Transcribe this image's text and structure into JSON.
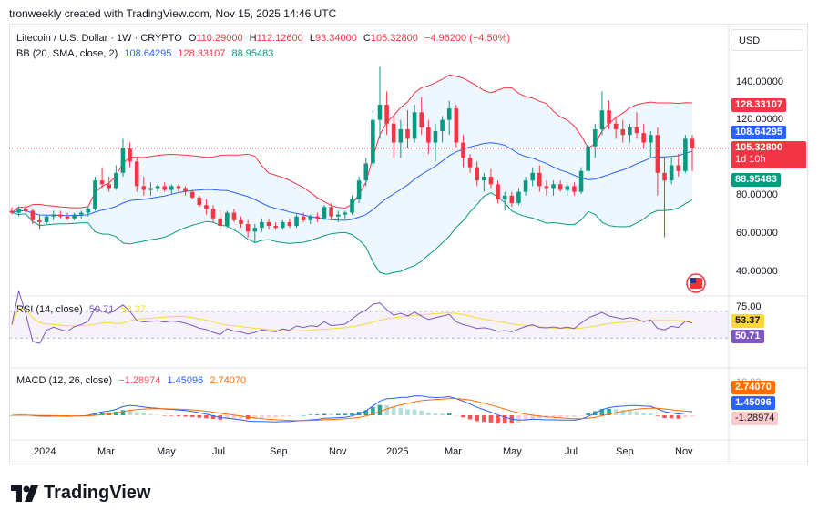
{
  "header": {
    "attribution": "tronweekly created with TradingView.com, Nov 15, 2025 14:46 UTC"
  },
  "legend": {
    "symbol": "Litecoin / U.S. Dollar · 1W · CRYPTO",
    "open_label": "O",
    "open": "110.29000",
    "high_label": "H",
    "high": "112.12600",
    "low_label": "L",
    "low": "93.34000",
    "close_label": "C",
    "close": "105.32800",
    "change": "−4.96200 (−4.50%)",
    "bb_label": "BB (20, SMA, close, 2)",
    "bb_basis": "108.64295",
    "bb_upper": "128.33107",
    "bb_lower": "88.95483",
    "rsi_label": "RSI (14, close)",
    "rsi_value": "50.71",
    "rsi_ma": "53.37",
    "macd_label": "MACD (12, 26, close)",
    "macd_hist": "−1.28974",
    "macd_line": "1.45096",
    "macd_signal": "2.74070"
  },
  "currency": "USD",
  "price_axis": {
    "ticks": [
      "140.00000",
      "120.00000",
      "100.00000",
      "80.00000",
      "60.00000",
      "40.00000"
    ],
    "badge_upper": "128.33107",
    "badge_basis": "108.64295",
    "badge_close": "105.32800",
    "badge_countdown": "1d 10h",
    "badge_lower": "88.95483"
  },
  "rsi_axis": {
    "tick": "75.00",
    "badge_ma": "53.37",
    "badge_rsi": "50.71"
  },
  "macd_axis": {
    "tick": "10.00",
    "badge_signal": "2.74070",
    "badge_macd": "1.45096",
    "badge_hist": "-1.28974"
  },
  "time_axis": [
    "2024",
    "Mar",
    "May",
    "Jul",
    "Sep",
    "Nov",
    "2025",
    "Mar",
    "May",
    "Jul",
    "Sep",
    "Nov"
  ],
  "footer": {
    "brand": "TradingView"
  },
  "colors": {
    "up": "#089981",
    "down": "#f23645",
    "basis": "#2962ff",
    "upper": "#f23645",
    "lower": "#089981",
    "band_fill": "#2196f3",
    "rsi": "#7e57c2",
    "rsi_ma": "#fdd835",
    "macd": "#2962ff",
    "signal": "#ff6d00"
  },
  "chart_data": {
    "type": "candlestick",
    "title": "Litecoin / U.S. Dollar · 1W · CRYPTO",
    "interval": "1W",
    "price_range": [
      30,
      160
    ],
    "candles_note": "weekly OHLC, estimated from the chart (Dec 2023 – Nov 2025)",
    "ohlc": [
      [
        72,
        74,
        70,
        71
      ],
      [
        71,
        74,
        69,
        73
      ],
      [
        73,
        75,
        71,
        72
      ],
      [
        72,
        73,
        65,
        67
      ],
      [
        67,
        70,
        62,
        66
      ],
      [
        66,
        70,
        65,
        69
      ],
      [
        69,
        72,
        67,
        70
      ],
      [
        70,
        72,
        68,
        69
      ],
      [
        69,
        71,
        67,
        68
      ],
      [
        68,
        71,
        67,
        70
      ],
      [
        70,
        72,
        68,
        71
      ],
      [
        71,
        74,
        69,
        73
      ],
      [
        73,
        90,
        72,
        88
      ],
      [
        88,
        95,
        84,
        86
      ],
      [
        86,
        90,
        82,
        84
      ],
      [
        84,
        96,
        83,
        92
      ],
      [
        92,
        110,
        90,
        105
      ],
      [
        105,
        108,
        95,
        98
      ],
      [
        98,
        100,
        82,
        85
      ],
      [
        85,
        90,
        80,
        83
      ],
      [
        83,
        87,
        80,
        84
      ],
      [
        84,
        86,
        82,
        85
      ],
      [
        85,
        87,
        82,
        83
      ],
      [
        83,
        86,
        81,
        85
      ],
      [
        85,
        86,
        82,
        84
      ],
      [
        84,
        85,
        80,
        82
      ],
      [
        82,
        83,
        78,
        79
      ],
      [
        79,
        80,
        74,
        75
      ],
      [
        75,
        78,
        70,
        73
      ],
      [
        73,
        75,
        66,
        68
      ],
      [
        68,
        72,
        62,
        64
      ],
      [
        64,
        72,
        63,
        71
      ],
      [
        71,
        73,
        66,
        67
      ],
      [
        67,
        69,
        63,
        65
      ],
      [
        65,
        67,
        58,
        61
      ],
      [
        61,
        65,
        55,
        63
      ],
      [
        63,
        68,
        61,
        66
      ],
      [
        66,
        68,
        62,
        64
      ],
      [
        64,
        66,
        62,
        63
      ],
      [
        63,
        67,
        62,
        66
      ],
      [
        66,
        68,
        63,
        64
      ],
      [
        64,
        70,
        63,
        69
      ],
      [
        69,
        71,
        66,
        67
      ],
      [
        67,
        70,
        65,
        69
      ],
      [
        69,
        71,
        66,
        68
      ],
      [
        68,
        75,
        67,
        74
      ],
      [
        74,
        76,
        67,
        69
      ],
      [
        69,
        72,
        66,
        70
      ],
      [
        70,
        72,
        68,
        71
      ],
      [
        71,
        80,
        70,
        78
      ],
      [
        78,
        90,
        76,
        88
      ],
      [
        88,
        100,
        85,
        97
      ],
      [
        97,
        125,
        95,
        120
      ],
      [
        120,
        148,
        110,
        128
      ],
      [
        128,
        135,
        112,
        118
      ],
      [
        118,
        122,
        100,
        108
      ],
      [
        108,
        120,
        100,
        115
      ],
      [
        115,
        125,
        105,
        110
      ],
      [
        110,
        128,
        108,
        124
      ],
      [
        124,
        132,
        112,
        116
      ],
      [
        116,
        120,
        102,
        108
      ],
      [
        108,
        118,
        98,
        114
      ],
      [
        114,
        122,
        108,
        120
      ],
      [
        120,
        130,
        112,
        126
      ],
      [
        126,
        128,
        105,
        108
      ],
      [
        108,
        112,
        95,
        100
      ],
      [
        100,
        102,
        92,
        95
      ],
      [
        95,
        98,
        85,
        88
      ],
      [
        88,
        92,
        82,
        90
      ],
      [
        90,
        94,
        84,
        86
      ],
      [
        86,
        88,
        76,
        78
      ],
      [
        78,
        82,
        72,
        80
      ],
      [
        80,
        82,
        74,
        76
      ],
      [
        76,
        84,
        75,
        82
      ],
      [
        82,
        90,
        80,
        88
      ],
      [
        88,
        95,
        85,
        92
      ],
      [
        92,
        96,
        82,
        85
      ],
      [
        85,
        88,
        80,
        84
      ],
      [
        84,
        88,
        80,
        86
      ],
      [
        86,
        88,
        82,
        83
      ],
      [
        83,
        86,
        80,
        85
      ],
      [
        85,
        87,
        80,
        82
      ],
      [
        82,
        95,
        81,
        93
      ],
      [
        93,
        108,
        92,
        106
      ],
      [
        106,
        118,
        100,
        115
      ],
      [
        115,
        135,
        112,
        125
      ],
      [
        125,
        130,
        115,
        118
      ],
      [
        118,
        122,
        110,
        115
      ],
      [
        115,
        120,
        108,
        112
      ],
      [
        112,
        118,
        108,
        116
      ],
      [
        116,
        124,
        110,
        113
      ],
      [
        113,
        118,
        105,
        108
      ],
      [
        108,
        114,
        100,
        112
      ],
      [
        112,
        116,
        80,
        92
      ],
      [
        92,
        100,
        58,
        88
      ],
      [
        88,
        100,
        86,
        96
      ],
      [
        96,
        102,
        90,
        93
      ],
      [
        93,
        112,
        92,
        110
      ],
      [
        110,
        112,
        93,
        105
      ]
    ],
    "bollinger": {
      "period": 20,
      "basis_last": 108.64295,
      "upper_last": 128.33107,
      "lower_last": 88.95483
    },
    "rsi": {
      "period": 14,
      "last": 50.71,
      "ma_last": 53.37,
      "range": [
        0,
        100
      ]
    },
    "macd": {
      "fast": 12,
      "slow": 26,
      "macd_last": 1.45096,
      "signal_last": 2.7407,
      "hist_last": -1.28974
    },
    "x_labels": [
      "2024",
      "Mar",
      "May",
      "Jul",
      "Sep",
      "Nov",
      "2025",
      "Mar",
      "May",
      "Jul",
      "Sep",
      "Nov"
    ]
  }
}
